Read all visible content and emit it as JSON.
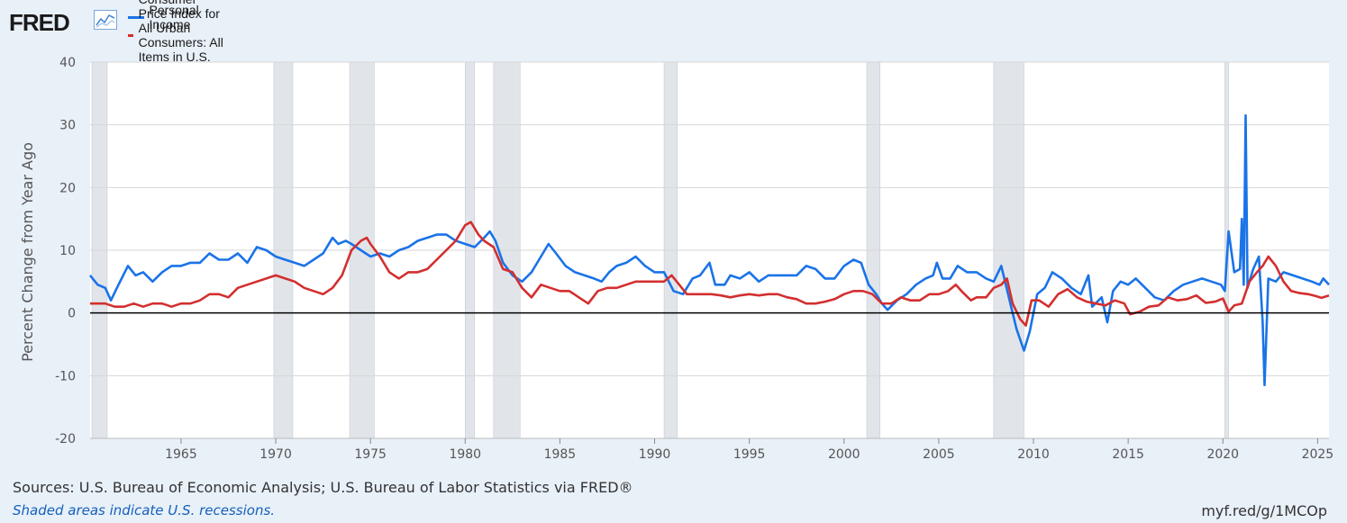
{
  "header": {
    "logo_text": "FRED",
    "logo_icon": "line-chart-icon"
  },
  "colors": {
    "background": "#e8f0f8",
    "plot_bg": "#ffffff",
    "series1": "#1a73e8",
    "series2": "#d32f2f",
    "recession": "#e1e5ea",
    "grid": "#d7d7d7",
    "zero_line": "#000000"
  },
  "chart_data": {
    "type": "line",
    "title": "",
    "xlabel": "",
    "ylabel": "Percent Change from Year Ago",
    "ylim": [
      -20,
      40
    ],
    "xlim": [
      1960.2,
      2025.6
    ],
    "yticks": [
      -20,
      -10,
      0,
      10,
      20,
      30,
      40
    ],
    "xticks": [
      1965,
      1970,
      1975,
      1980,
      1985,
      1990,
      1995,
      2000,
      2005,
      2010,
      2015,
      2020,
      2025
    ],
    "grid": true,
    "legend": "top-left",
    "recessions": [
      [
        1960.3,
        1961.1
      ],
      [
        1969.9,
        1970.9
      ],
      [
        1973.9,
        1975.2
      ],
      [
        1980.0,
        1980.5
      ],
      [
        1981.5,
        1982.9
      ],
      [
        1990.5,
        1991.2
      ],
      [
        2001.2,
        2001.9
      ],
      [
        2007.9,
        2009.5
      ],
      [
        2020.1,
        2020.3
      ]
    ],
    "series": [
      {
        "name": "Personal Income",
        "points": [
          [
            1960.2,
            6.0
          ],
          [
            1960.6,
            4.5
          ],
          [
            1961.0,
            4.0
          ],
          [
            1961.3,
            2.0
          ],
          [
            1961.7,
            4.5
          ],
          [
            1962.2,
            7.5
          ],
          [
            1962.6,
            6.0
          ],
          [
            1963.0,
            6.5
          ],
          [
            1963.5,
            5.0
          ],
          [
            1964.0,
            6.5
          ],
          [
            1964.5,
            7.5
          ],
          [
            1965.0,
            7.5
          ],
          [
            1965.5,
            8.0
          ],
          [
            1966.0,
            8.0
          ],
          [
            1966.5,
            9.5
          ],
          [
            1967.0,
            8.5
          ],
          [
            1967.5,
            8.5
          ],
          [
            1968.0,
            9.5
          ],
          [
            1968.5,
            8.0
          ],
          [
            1969.0,
            10.5
          ],
          [
            1969.5,
            10.0
          ],
          [
            1970.0,
            9.0
          ],
          [
            1970.5,
            8.5
          ],
          [
            1971.0,
            8.0
          ],
          [
            1971.5,
            7.5
          ],
          [
            1972.0,
            8.5
          ],
          [
            1972.5,
            9.5
          ],
          [
            1973.0,
            12.0
          ],
          [
            1973.3,
            11.0
          ],
          [
            1973.7,
            11.5
          ],
          [
            1974.0,
            11.0
          ],
          [
            1974.5,
            10.0
          ],
          [
            1975.0,
            9.0
          ],
          [
            1975.5,
            9.5
          ],
          [
            1976.0,
            9.0
          ],
          [
            1976.5,
            10.0
          ],
          [
            1977.0,
            10.5
          ],
          [
            1977.5,
            11.5
          ],
          [
            1978.0,
            12.0
          ],
          [
            1978.5,
            12.5
          ],
          [
            1979.0,
            12.5
          ],
          [
            1979.5,
            11.5
          ],
          [
            1980.0,
            11.0
          ],
          [
            1980.5,
            10.5
          ],
          [
            1981.0,
            12.0
          ],
          [
            1981.3,
            13.0
          ],
          [
            1981.6,
            11.5
          ],
          [
            1982.0,
            8.0
          ],
          [
            1982.5,
            6.0
          ],
          [
            1983.0,
            5.0
          ],
          [
            1983.5,
            6.5
          ],
          [
            1984.0,
            9.0
          ],
          [
            1984.4,
            11.0
          ],
          [
            1984.8,
            9.5
          ],
          [
            1985.3,
            7.5
          ],
          [
            1985.8,
            6.5
          ],
          [
            1986.3,
            6.0
          ],
          [
            1986.8,
            5.5
          ],
          [
            1987.2,
            5.0
          ],
          [
            1987.6,
            6.5
          ],
          [
            1988.0,
            7.5
          ],
          [
            1988.5,
            8.0
          ],
          [
            1989.0,
            9.0
          ],
          [
            1989.5,
            7.5
          ],
          [
            1990.0,
            6.5
          ],
          [
            1990.5,
            6.5
          ],
          [
            1991.0,
            3.5
          ],
          [
            1991.5,
            3.0
          ],
          [
            1992.0,
            5.5
          ],
          [
            1992.4,
            6.0
          ],
          [
            1992.9,
            8.0
          ],
          [
            1993.2,
            4.5
          ],
          [
            1993.7,
            4.5
          ],
          [
            1994.0,
            6.0
          ],
          [
            1994.5,
            5.5
          ],
          [
            1995.0,
            6.5
          ],
          [
            1995.5,
            5.0
          ],
          [
            1996.0,
            6.0
          ],
          [
            1996.5,
            6.0
          ],
          [
            1997.0,
            6.0
          ],
          [
            1997.5,
            6.0
          ],
          [
            1998.0,
            7.5
          ],
          [
            1998.5,
            7.0
          ],
          [
            1999.0,
            5.5
          ],
          [
            1999.5,
            5.5
          ],
          [
            2000.0,
            7.5
          ],
          [
            2000.5,
            8.5
          ],
          [
            2000.9,
            8.0
          ],
          [
            2001.3,
            4.5
          ],
          [
            2001.7,
            3.0
          ],
          [
            2002.0,
            1.5
          ],
          [
            2002.3,
            0.5
          ],
          [
            2002.8,
            2.0
          ],
          [
            2003.3,
            3.0
          ],
          [
            2003.8,
            4.5
          ],
          [
            2004.3,
            5.5
          ],
          [
            2004.7,
            6.0
          ],
          [
            2004.9,
            8.0
          ],
          [
            2005.2,
            5.5
          ],
          [
            2005.6,
            5.5
          ],
          [
            2006.0,
            7.5
          ],
          [
            2006.5,
            6.5
          ],
          [
            2007.0,
            6.5
          ],
          [
            2007.5,
            5.5
          ],
          [
            2007.9,
            5.0
          ],
          [
            2008.3,
            7.5
          ],
          [
            2008.7,
            2.5
          ],
          [
            2009.1,
            -2.5
          ],
          [
            2009.5,
            -6.0
          ],
          [
            2009.8,
            -3.0
          ],
          [
            2010.2,
            3.0
          ],
          [
            2010.6,
            4.0
          ],
          [
            2011.0,
            6.5
          ],
          [
            2011.5,
            5.5
          ],
          [
            2012.0,
            4.0
          ],
          [
            2012.5,
            3.0
          ],
          [
            2012.9,
            6.0
          ],
          [
            2013.1,
            1.0
          ],
          [
            2013.6,
            2.5
          ],
          [
            2013.9,
            -1.5
          ],
          [
            2014.2,
            3.5
          ],
          [
            2014.6,
            5.0
          ],
          [
            2015.0,
            4.5
          ],
          [
            2015.4,
            5.5
          ],
          [
            2015.9,
            4.0
          ],
          [
            2016.4,
            2.5
          ],
          [
            2016.9,
            2.0
          ],
          [
            2017.4,
            3.5
          ],
          [
            2017.9,
            4.5
          ],
          [
            2018.4,
            5.0
          ],
          [
            2018.9,
            5.5
          ],
          [
            2019.4,
            5.0
          ],
          [
            2019.9,
            4.5
          ],
          [
            2020.1,
            3.5
          ],
          [
            2020.3,
            13.0
          ],
          [
            2020.6,
            6.5
          ],
          [
            2020.9,
            7.0
          ],
          [
            2021.0,
            15.0
          ],
          [
            2021.1,
            4.5
          ],
          [
            2021.2,
            31.5
          ],
          [
            2021.3,
            4.0
          ],
          [
            2021.6,
            7.0
          ],
          [
            2021.9,
            9.0
          ],
          [
            2022.1,
            -1.5
          ],
          [
            2022.2,
            -11.5
          ],
          [
            2022.4,
            5.5
          ],
          [
            2022.8,
            5.0
          ],
          [
            2023.2,
            6.5
          ],
          [
            2023.7,
            6.0
          ],
          [
            2024.2,
            5.5
          ],
          [
            2024.7,
            5.0
          ],
          [
            2025.1,
            4.5
          ],
          [
            2025.3,
            5.5
          ],
          [
            2025.6,
            4.5
          ]
        ]
      },
      {
        "name": "Consumer Price Index for All Urban Consumers: All Items in U.S. City Average",
        "points": [
          [
            1960.2,
            1.5
          ],
          [
            1961.0,
            1.5
          ],
          [
            1961.5,
            1.0
          ],
          [
            1962.0,
            1.0
          ],
          [
            1962.5,
            1.5
          ],
          [
            1963.0,
            1.0
          ],
          [
            1963.5,
            1.5
          ],
          [
            1964.0,
            1.5
          ],
          [
            1964.5,
            1.0
          ],
          [
            1965.0,
            1.5
          ],
          [
            1965.5,
            1.5
          ],
          [
            1966.0,
            2.0
          ],
          [
            1966.5,
            3.0
          ],
          [
            1967.0,
            3.0
          ],
          [
            1967.5,
            2.5
          ],
          [
            1968.0,
            4.0
          ],
          [
            1968.5,
            4.5
          ],
          [
            1969.0,
            5.0
          ],
          [
            1969.5,
            5.5
          ],
          [
            1970.0,
            6.0
          ],
          [
            1970.5,
            5.5
          ],
          [
            1971.0,
            5.0
          ],
          [
            1971.5,
            4.0
          ],
          [
            1972.0,
            3.5
          ],
          [
            1972.5,
            3.0
          ],
          [
            1973.0,
            4.0
          ],
          [
            1973.5,
            6.0
          ],
          [
            1974.0,
            10.0
          ],
          [
            1974.5,
            11.5
          ],
          [
            1974.8,
            12.0
          ],
          [
            1975.0,
            11.0
          ],
          [
            1975.5,
            9.0
          ],
          [
            1976.0,
            6.5
          ],
          [
            1976.5,
            5.5
          ],
          [
            1977.0,
            6.5
          ],
          [
            1977.5,
            6.5
          ],
          [
            1978.0,
            7.0
          ],
          [
            1978.5,
            8.5
          ],
          [
            1979.0,
            10.0
          ],
          [
            1979.5,
            11.5
          ],
          [
            1980.0,
            14.0
          ],
          [
            1980.3,
            14.5
          ],
          [
            1980.7,
            12.5
          ],
          [
            1981.0,
            11.5
          ],
          [
            1981.5,
            10.5
          ],
          [
            1982.0,
            7.0
          ],
          [
            1982.5,
            6.5
          ],
          [
            1983.0,
            4.0
          ],
          [
            1983.5,
            2.5
          ],
          [
            1984.0,
            4.5
          ],
          [
            1984.5,
            4.0
          ],
          [
            1985.0,
            3.5
          ],
          [
            1985.5,
            3.5
          ],
          [
            1986.0,
            2.5
          ],
          [
            1986.5,
            1.5
          ],
          [
            1987.0,
            3.5
          ],
          [
            1987.5,
            4.0
          ],
          [
            1988.0,
            4.0
          ],
          [
            1988.5,
            4.5
          ],
          [
            1989.0,
            5.0
          ],
          [
            1989.5,
            5.0
          ],
          [
            1990.0,
            5.0
          ],
          [
            1990.5,
            5.0
          ],
          [
            1990.9,
            6.0
          ],
          [
            1991.3,
            4.5
          ],
          [
            1991.7,
            3.0
          ],
          [
            1992.0,
            3.0
          ],
          [
            1992.5,
            3.0
          ],
          [
            1993.0,
            3.0
          ],
          [
            1993.5,
            2.8
          ],
          [
            1994.0,
            2.5
          ],
          [
            1994.5,
            2.8
          ],
          [
            1995.0,
            3.0
          ],
          [
            1995.5,
            2.8
          ],
          [
            1996.0,
            3.0
          ],
          [
            1996.5,
            3.0
          ],
          [
            1997.0,
            2.5
          ],
          [
            1997.5,
            2.2
          ],
          [
            1998.0,
            1.5
          ],
          [
            1998.5,
            1.5
          ],
          [
            1999.0,
            1.8
          ],
          [
            1999.5,
            2.2
          ],
          [
            2000.0,
            3.0
          ],
          [
            2000.5,
            3.5
          ],
          [
            2001.0,
            3.5
          ],
          [
            2001.5,
            3.0
          ],
          [
            2002.0,
            1.5
          ],
          [
            2002.5,
            1.5
          ],
          [
            2003.0,
            2.5
          ],
          [
            2003.5,
            2.0
          ],
          [
            2004.0,
            2.0
          ],
          [
            2004.5,
            3.0
          ],
          [
            2005.0,
            3.0
          ],
          [
            2005.5,
            3.5
          ],
          [
            2005.9,
            4.5
          ],
          [
            2006.2,
            3.5
          ],
          [
            2006.7,
            2.0
          ],
          [
            2007.0,
            2.5
          ],
          [
            2007.5,
            2.5
          ],
          [
            2007.9,
            4.0
          ],
          [
            2008.3,
            4.5
          ],
          [
            2008.6,
            5.5
          ],
          [
            2008.9,
            1.5
          ],
          [
            2009.3,
            -1.0
          ],
          [
            2009.6,
            -2.0
          ],
          [
            2009.9,
            2.0
          ],
          [
            2010.3,
            2.0
          ],
          [
            2010.8,
            1.0
          ],
          [
            2011.3,
            3.0
          ],
          [
            2011.8,
            3.8
          ],
          [
            2012.3,
            2.5
          ],
          [
            2012.8,
            1.8
          ],
          [
            2013.3,
            1.5
          ],
          [
            2013.8,
            1.2
          ],
          [
            2014.3,
            2.0
          ],
          [
            2014.8,
            1.5
          ],
          [
            2015.1,
            -0.2
          ],
          [
            2015.6,
            0.2
          ],
          [
            2016.1,
            1.0
          ],
          [
            2016.6,
            1.2
          ],
          [
            2017.1,
            2.5
          ],
          [
            2017.6,
            2.0
          ],
          [
            2018.1,
            2.2
          ],
          [
            2018.6,
            2.8
          ],
          [
            2019.1,
            1.6
          ],
          [
            2019.6,
            1.8
          ],
          [
            2020.0,
            2.3
          ],
          [
            2020.3,
            0.2
          ],
          [
            2020.6,
            1.2
          ],
          [
            2021.0,
            1.5
          ],
          [
            2021.4,
            5.0
          ],
          [
            2021.8,
            6.5
          ],
          [
            2022.1,
            7.5
          ],
          [
            2022.4,
            9.0
          ],
          [
            2022.8,
            7.5
          ],
          [
            2023.2,
            5.0
          ],
          [
            2023.6,
            3.5
          ],
          [
            2024.0,
            3.2
          ],
          [
            2024.5,
            3.0
          ],
          [
            2024.9,
            2.7
          ],
          [
            2025.2,
            2.4
          ],
          [
            2025.6,
            2.8
          ]
        ]
      }
    ]
  },
  "footer": {
    "sources": "Sources: U.S. Bureau of Economic Analysis; U.S. Bureau of Labor Statistics via FRED®",
    "note": "Shaded areas indicate U.S. recessions.",
    "url": "myf.red/g/1MCOp"
  }
}
